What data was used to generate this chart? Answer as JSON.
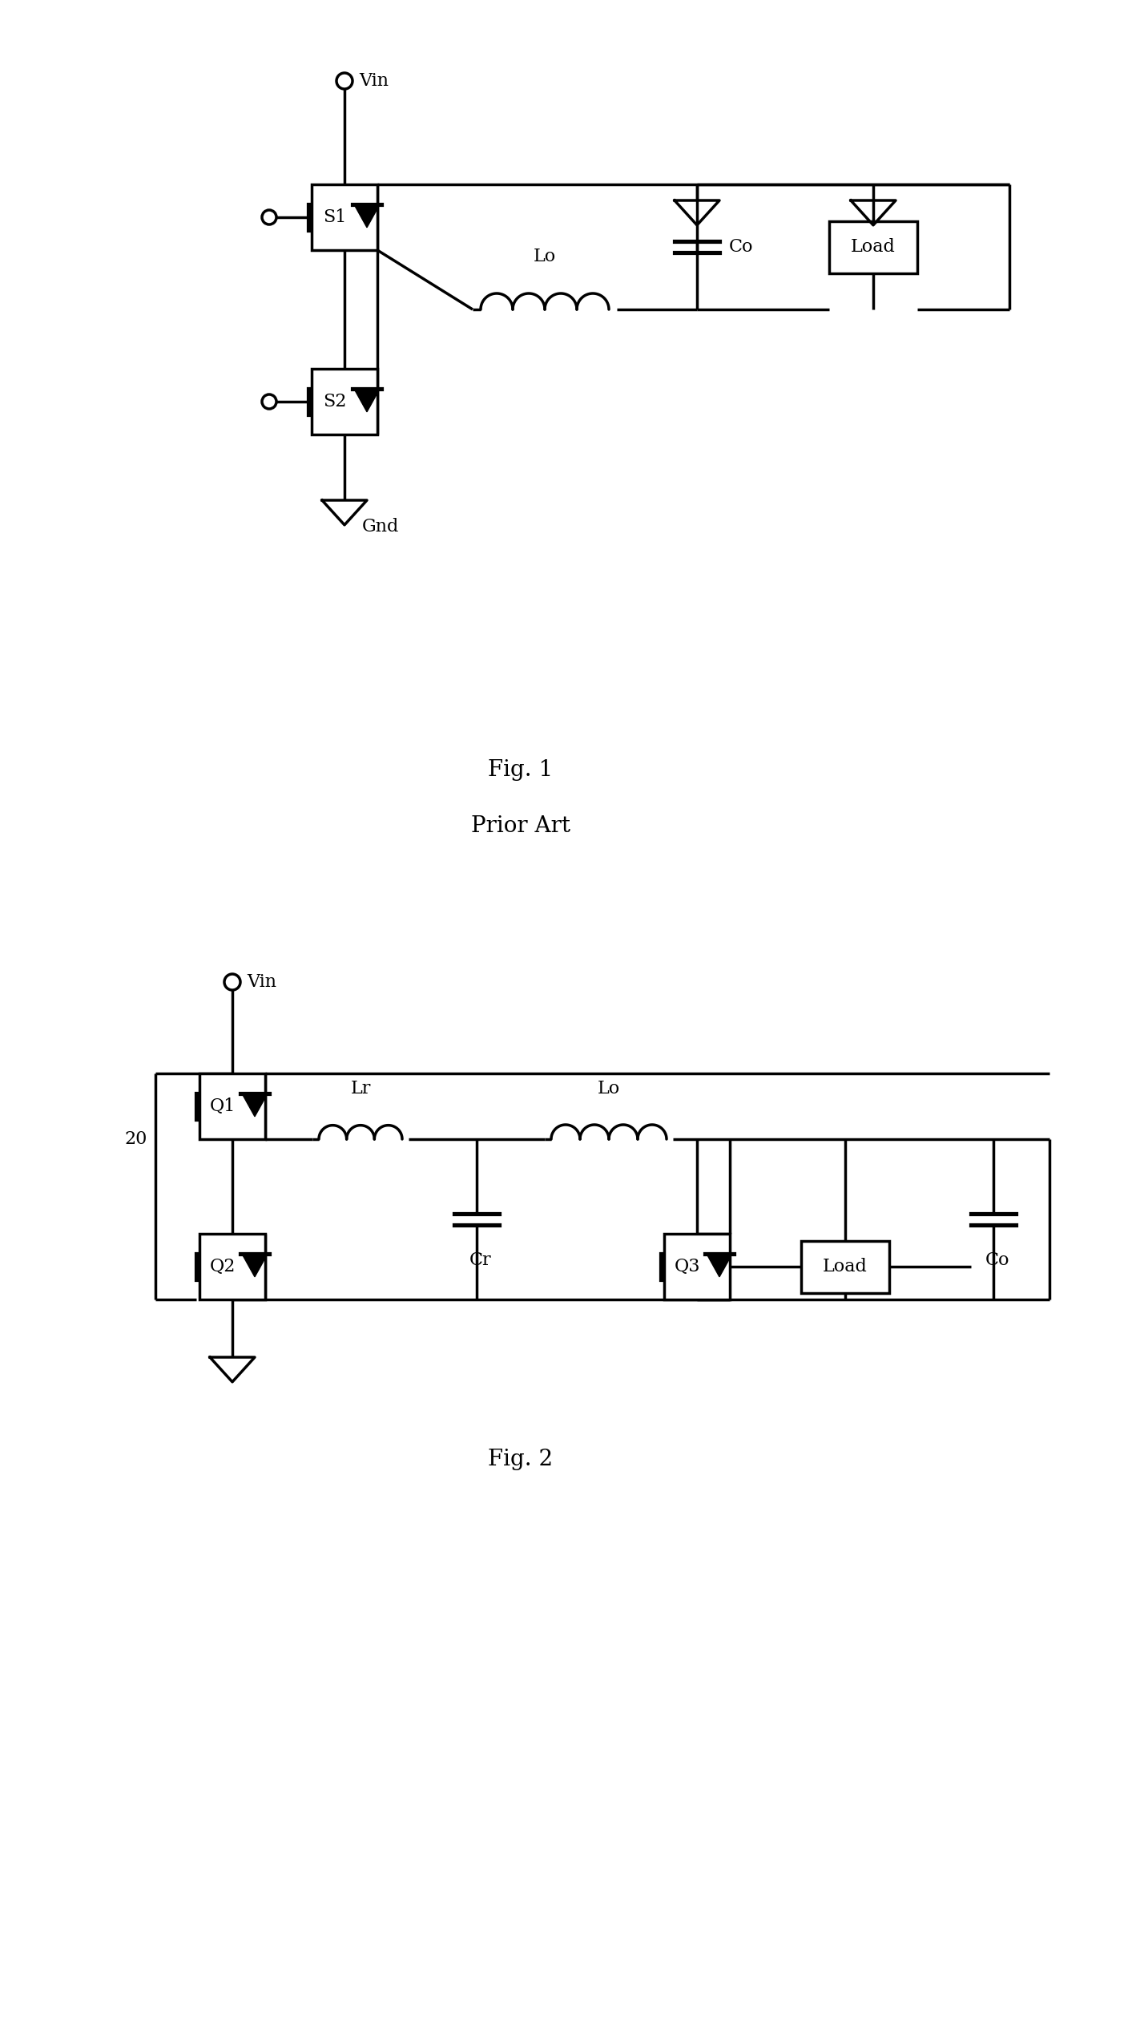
{
  "fig1_title": "Fig. 1",
  "fig1_subtitle": "Prior Art",
  "fig2_title": "Fig. 2",
  "bg": "#ffffff",
  "lw": 2.5,
  "fs_label": 16,
  "fs_caption": 20
}
